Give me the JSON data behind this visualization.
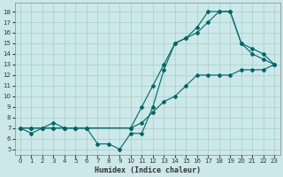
{
  "xlabel": "Humidex (Indice chaleur)",
  "xlim": [
    -0.5,
    23.5
  ],
  "ylim": [
    4.5,
    18.8
  ],
  "yticks": [
    5,
    6,
    7,
    8,
    9,
    10,
    11,
    12,
    13,
    14,
    15,
    16,
    17,
    18
  ],
  "xticks": [
    0,
    1,
    2,
    3,
    4,
    5,
    6,
    7,
    8,
    9,
    10,
    11,
    12,
    13,
    14,
    15,
    16,
    17,
    18,
    19,
    20,
    21,
    22,
    23
  ],
  "bg_color": "#cce8e8",
  "line_color": "#006666",
  "grid_color": "#aacccc",
  "line1_x": [
    0,
    1,
    2,
    3,
    4,
    5,
    6,
    10,
    11,
    12,
    13,
    14,
    15,
    16,
    17,
    18,
    19,
    20,
    21,
    22,
    23
  ],
  "line1_y": [
    7,
    7,
    7,
    7,
    7,
    7,
    7,
    7,
    9,
    11,
    13,
    15,
    15.5,
    16,
    17,
    18,
    18,
    15,
    14,
    13.5,
    13
  ],
  "line2_x": [
    0,
    1,
    2,
    3,
    4,
    5,
    6,
    7,
    8,
    9,
    10,
    11,
    12,
    13,
    14,
    15,
    16,
    17,
    18,
    19,
    20,
    21,
    22,
    23
  ],
  "line2_y": [
    7,
    6.5,
    7,
    7.5,
    7,
    7,
    7,
    5.5,
    5.5,
    5,
    6.5,
    6.5,
    9,
    12.5,
    15,
    15.5,
    16.5,
    18,
    18,
    18,
    15,
    14.5,
    14,
    13
  ],
  "line3_x": [
    0,
    1,
    2,
    3,
    4,
    5,
    6,
    10,
    11,
    12,
    13,
    14,
    15,
    16,
    17,
    18,
    19,
    20,
    21,
    22,
    23
  ],
  "line3_y": [
    7,
    7,
    7,
    7,
    7,
    7,
    7,
    7,
    7.5,
    8.5,
    9.5,
    10,
    11,
    12,
    12,
    12,
    12,
    12.5,
    12.5,
    12.5,
    13
  ]
}
